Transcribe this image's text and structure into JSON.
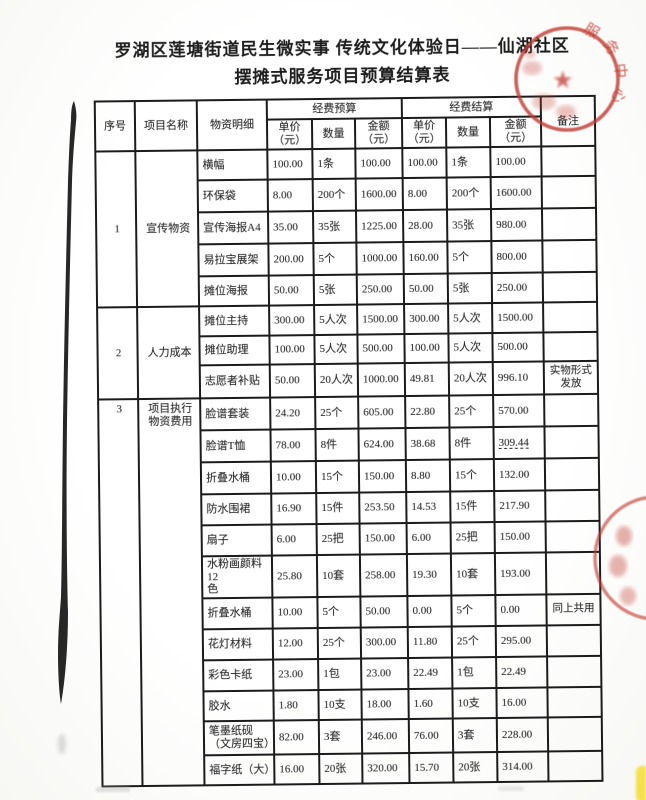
{
  "document": {
    "title_line1": "罗湖区莲塘街道民生微实事 传统文化体验日——仙湖社区",
    "title_line2": "摆摊式服务项目预算结算表"
  },
  "table": {
    "headers": {
      "no": "序号",
      "project_name": "项目名称",
      "material_detail": "物资明细",
      "budget_group": "经费预算",
      "settlement_group": "经费结算",
      "remark": "备注"
    },
    "sub_headers": [
      "单价\n（元）",
      "数量",
      "金额\n（元）",
      "单价\n（元）",
      "数量",
      "金额\n（元）"
    ],
    "sections": [
      {
        "no": "1",
        "name": "宣传物资",
        "items": [
          {
            "detail": "横幅",
            "b_price": "100.00",
            "b_qty": "1条",
            "b_amt": "100.00",
            "s_price": "100.00",
            "s_qty": "1条",
            "s_amt": "100.00",
            "remark": ""
          },
          {
            "detail": "环保袋",
            "b_price": "8.00",
            "b_qty": "200个",
            "b_amt": "1600.00",
            "s_price": "8.00",
            "s_qty": "200个",
            "s_amt": "1600.00",
            "remark": ""
          },
          {
            "detail": "宣传海报A4",
            "b_price": "35.00",
            "b_qty": "35张",
            "b_amt": "1225.00",
            "s_price": "28.00",
            "s_qty": "35张",
            "s_amt": "980.00",
            "remark": ""
          },
          {
            "detail": "易拉宝展架",
            "b_price": "200.00",
            "b_qty": "5个",
            "b_amt": "1000.00",
            "s_price": "160.00",
            "s_qty": "5个",
            "s_amt": "800.00",
            "remark": ""
          },
          {
            "detail": "摊位海报",
            "b_price": "50.00",
            "b_qty": "5张",
            "b_amt": "250.00",
            "s_price": "50.00",
            "s_qty": "5张",
            "s_amt": "250.00",
            "remark": ""
          }
        ]
      },
      {
        "no": "2",
        "name": "人力成本",
        "items": [
          {
            "detail": "摊位主持",
            "b_price": "300.00",
            "b_qty": "5人次",
            "b_amt": "1500.00",
            "s_price": "300.00",
            "s_qty": "5人次",
            "s_amt": "1500.00",
            "remark": ""
          },
          {
            "detail": "摊位助理",
            "b_price": "100.00",
            "b_qty": "5人次",
            "b_amt": "500.00",
            "s_price": "100.00",
            "s_qty": "5人次",
            "s_amt": "500.00",
            "remark": ""
          },
          {
            "detail": "志愿者补贴",
            "b_price": "50.00",
            "b_qty": "20人次",
            "b_amt": "1000.00",
            "s_price": "49.81",
            "s_qty": "20人次",
            "s_amt": "996.10",
            "remark": "实物形式\n发放"
          }
        ]
      },
      {
        "no": "3",
        "name": "项目执行\n物资费用",
        "items": [
          {
            "detail": "脸谱套装",
            "b_price": "24.20",
            "b_qty": "25个",
            "b_amt": "605.00",
            "s_price": "22.80",
            "s_qty": "25个",
            "s_amt": "570.00",
            "remark": ""
          },
          {
            "detail": "脸谱T恤",
            "b_price": "78.00",
            "b_qty": "8件",
            "b_amt": "624.00",
            "s_price": "38.68",
            "s_qty": "8件",
            "s_amt": "309.44",
            "remark": "",
            "underline": true
          },
          {
            "detail": "折叠水桶",
            "b_price": "10.00",
            "b_qty": "15个",
            "b_amt": "150.00",
            "s_price": "8.80",
            "s_qty": "15个",
            "s_amt": "132.00",
            "remark": ""
          },
          {
            "detail": "防水围裙",
            "b_price": "16.90",
            "b_qty": "15件",
            "b_amt": "253.50",
            "s_price": "14.53",
            "s_qty": "15件",
            "s_amt": "217.90",
            "remark": ""
          },
          {
            "detail": "扇子",
            "b_price": "6.00",
            "b_qty": "25把",
            "b_amt": "150.00",
            "s_price": "6.00",
            "s_qty": "25把",
            "s_amt": "150.00",
            "remark": ""
          },
          {
            "detail": "水粉画颜料12\n色",
            "b_price": "25.80",
            "b_qty": "10套",
            "b_amt": "258.00",
            "s_price": "19.30",
            "s_qty": "10套",
            "s_amt": "193.00",
            "remark": ""
          },
          {
            "detail": "折叠水桶",
            "b_price": "10.00",
            "b_qty": "5个",
            "b_amt": "50.00",
            "s_price": "0.00",
            "s_qty": "5个",
            "s_amt": "0.00",
            "remark": "同上共用"
          },
          {
            "detail": "花灯材料",
            "b_price": "12.00",
            "b_qty": "25个",
            "b_amt": "300.00",
            "s_price": "11.80",
            "s_qty": "25个",
            "s_amt": "295.00",
            "remark": ""
          },
          {
            "detail": "彩色卡纸",
            "b_price": "23.00",
            "b_qty": "1包",
            "b_amt": "23.00",
            "s_price": "22.49",
            "s_qty": "1包",
            "s_amt": "22.49",
            "remark": ""
          },
          {
            "detail": "胶水",
            "b_price": "1.80",
            "b_qty": "10支",
            "b_amt": "18.00",
            "s_price": "1.60",
            "s_qty": "10支",
            "s_amt": "16.00",
            "remark": ""
          },
          {
            "detail": "笔墨纸砚\n（文房四宝）",
            "b_price": "82.00",
            "b_qty": "3套",
            "b_amt": "246.00",
            "s_price": "76.00",
            "s_qty": "3套",
            "s_amt": "228.00",
            "remark": ""
          },
          {
            "detail": "福字纸（大）",
            "b_price": "16.00",
            "b_qty": "20张",
            "b_amt": "320.00",
            "s_price": "15.70",
            "s_qty": "20张",
            "s_amt": "314.00",
            "remark": ""
          }
        ]
      }
    ]
  },
  "stamps": {
    "top_right_arc_text": "服务中心",
    "stamp_color": "#c23a31"
  }
}
